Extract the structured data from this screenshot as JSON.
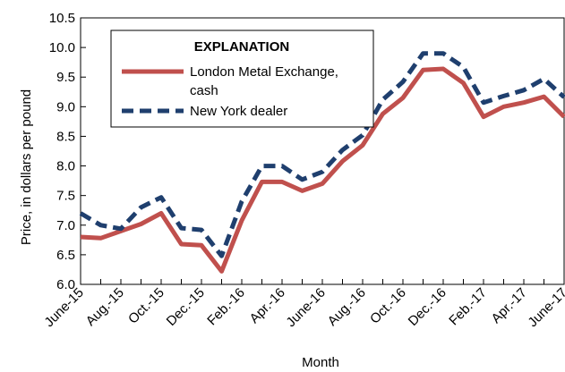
{
  "chart_data": {
    "type": "line",
    "title": "",
    "xlabel": "Month",
    "ylabel": "Price, in dollars per pound",
    "ylim": [
      6.0,
      10.5
    ],
    "yticks": [
      "6.0",
      "6.5",
      "7.0",
      "7.5",
      "8.0",
      "8.5",
      "9.0",
      "9.5",
      "10.0",
      "10.5"
    ],
    "x": [
      "June-15",
      "July-15",
      "Aug.-15",
      "Sept.-15",
      "Oct.-15",
      "Nov.-15",
      "Dec.-15",
      "Jan.-16",
      "Feb.-16",
      "Mar.-16",
      "Apr.-16",
      "May-16",
      "June-16",
      "July-16",
      "Aug.-16",
      "Sept.-16",
      "Oct.-16",
      "Nov.-16",
      "Dec.-16",
      "Jan.-17",
      "Feb.-17",
      "Mar.-17",
      "Apr.-17",
      "May-17",
      "June-17"
    ],
    "xtick_labels": [
      "June-15",
      "Aug.-15",
      "Oct.-15",
      "Dec.-15",
      "Feb.-16",
      "Apr.-16",
      "June-16",
      "Aug.-16",
      "Oct.-16",
      "Dec.-16",
      "Feb.-17",
      "Apr.-17",
      "June-17"
    ],
    "grid": false,
    "legend": {
      "title": "EXPLANATION",
      "placement": "top-left"
    },
    "series": [
      {
        "name": "London Metal Exchange, cash",
        "label_lines": [
          "London Metal Exchange,",
          "cash"
        ],
        "color": "#c0504d",
        "style": "solid",
        "values": [
          6.8,
          6.78,
          6.9,
          7.02,
          7.2,
          6.68,
          6.66,
          6.22,
          7.08,
          7.73,
          7.73,
          7.58,
          7.7,
          8.08,
          8.35,
          8.88,
          9.15,
          9.62,
          9.64,
          9.4,
          8.83,
          9.0,
          9.07,
          9.17,
          8.83
        ]
      },
      {
        "name": "New York dealer",
        "label_lines": [
          "New York dealer"
        ],
        "color": "#1f3f6e",
        "style": "dashed",
        "values": [
          7.2,
          7.0,
          6.94,
          7.3,
          7.47,
          6.95,
          6.92,
          6.48,
          7.4,
          8.0,
          8.0,
          7.77,
          7.9,
          8.27,
          8.52,
          9.12,
          9.42,
          9.9,
          9.9,
          9.67,
          9.07,
          9.18,
          9.28,
          9.47,
          9.16
        ]
      }
    ]
  }
}
